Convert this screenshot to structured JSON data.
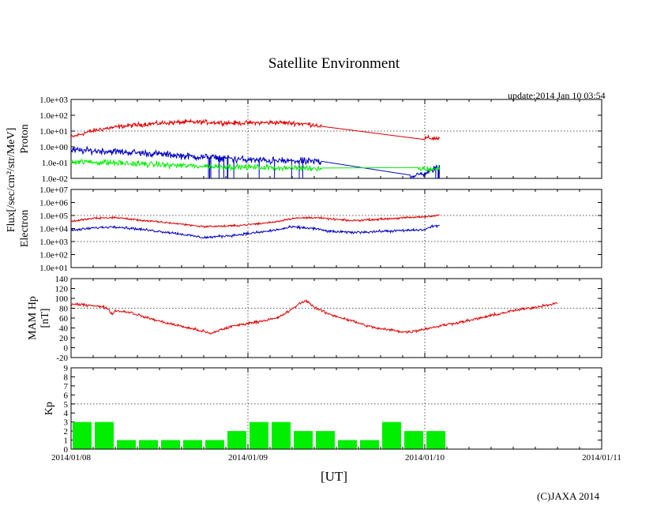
{
  "chart_data": {
    "type": "line",
    "title": "Satellite Environment",
    "update": "update:2014 Jan 10 03:54",
    "xlabel": "[UT]",
    "x_ticks": [
      "2014/01/08",
      "2014/01/09",
      "2014/01/10",
      "2014/01/11"
    ],
    "xlim": [
      0,
      72
    ],
    "x_units": "hours since 2014/01/08 00:00",
    "flux_label": "Flux[/sec/cm²/str/MeV]",
    "copyright": "(C)JAXA 2014",
    "colors": {
      "red": "#e00000",
      "blue": "#0000c0",
      "green": "#00ee00",
      "grid": "#555555"
    },
    "panels": [
      {
        "id": "proton",
        "ylabel": "Proton",
        "scale": "log",
        "ylim": [
          0.01,
          1000
        ],
        "y_ticks": [
          "1.0e-02",
          "1.0e-01",
          "1.0e+00",
          "1.0e+01",
          "1.0e+02",
          "1.0e+03"
        ],
        "gridlines": [
          10
        ],
        "series": [
          {
            "name": "proton-high",
            "color": "red",
            "noise": 0.12,
            "data": [
              [
                0,
                4
              ],
              [
                2,
                8
              ],
              [
                4,
                13
              ],
              [
                7,
                20
              ],
              [
                10,
                27
              ],
              [
                13,
                33
              ],
              [
                16,
                37
              ],
              [
                19,
                36
              ],
              [
                22,
                32
              ],
              [
                25,
                33
              ],
              [
                28,
                35
              ],
              [
                31,
                30
              ],
              [
                33,
                25
              ],
              [
                34,
                20
              ],
              [
                48,
                3.5
              ],
              [
                50,
                3.5
              ]
            ],
            "gapAfter": [
              34
            ]
          },
          {
            "name": "proton-mid",
            "color": "blue",
            "noise": 0.18,
            "data": [
              [
                0,
                0.6
              ],
              [
                4,
                0.55
              ],
              [
                8,
                0.45
              ],
              [
                12,
                0.35
              ],
              [
                16,
                0.25
              ],
              [
                20,
                0.2
              ],
              [
                24,
                0.15
              ],
              [
                28,
                0.13
              ],
              [
                32,
                0.12
              ],
              [
                34,
                0.12
              ],
              [
                46,
                0.015
              ],
              [
                47,
                0.015
              ],
              [
                50,
                0.05
              ]
            ],
            "gapAfter": [
              34
            ],
            "drops": true
          },
          {
            "name": "proton-low",
            "color": "green",
            "noise": 0.15,
            "data": [
              [
                0,
                0.12
              ],
              [
                5,
                0.1
              ],
              [
                10,
                0.08
              ],
              [
                15,
                0.065
              ],
              [
                20,
                0.055
              ],
              [
                25,
                0.05
              ],
              [
                30,
                0.045
              ],
              [
                34,
                0.045
              ],
              [
                47,
                0.04
              ],
              [
                50,
                0.04
              ]
            ],
            "gapAfter": [
              34
            ]
          }
        ]
      },
      {
        "id": "electron",
        "ylabel": "Electron",
        "scale": "log",
        "ylim": [
          10,
          10000000
        ],
        "y_ticks": [
          "1.0e+01",
          "1.0e+02",
          "1.0e+03",
          "1.0e+04",
          "1.0e+05",
          "1.0e+06",
          "1.0e+07"
        ],
        "gridlines": [
          1000,
          100000
        ],
        "series": [
          {
            "name": "electron-high",
            "color": "red",
            "noise": 0.06,
            "data": [
              [
                0,
                35000
              ],
              [
                3,
                60000
              ],
              [
                6,
                70000
              ],
              [
                10,
                40000
              ],
              [
                14,
                25000
              ],
              [
                18,
                14000
              ],
              [
                22,
                16000
              ],
              [
                26,
                25000
              ],
              [
                28,
                35000
              ],
              [
                30,
                60000
              ],
              [
                33,
                70000
              ],
              [
                35,
                55000
              ],
              [
                38,
                40000
              ],
              [
                48,
                80000
              ],
              [
                50,
                110000
              ]
            ]
          },
          {
            "name": "electron-mid",
            "color": "blue",
            "noise": 0.08,
            "data": [
              [
                0,
                7000
              ],
              [
                3,
                11000
              ],
              [
                6,
                14000
              ],
              [
                10,
                8000
              ],
              [
                14,
                4500
              ],
              [
                18,
                2000
              ],
              [
                22,
                3000
              ],
              [
                26,
                5500
              ],
              [
                28,
                8000
              ],
              [
                30,
                13000
              ],
              [
                33,
                10000
              ],
              [
                35,
                6000
              ],
              [
                38,
                5000
              ],
              [
                48,
                8000
              ],
              [
                49,
                15000
              ],
              [
                50,
                17000
              ]
            ]
          }
        ]
      },
      {
        "id": "mam",
        "ylabel": "MAM Hp",
        "ylabel2": "[nT]",
        "scale": "linear",
        "ylim": [
          -20,
          140
        ],
        "y_ticks": [
          "-20",
          "0",
          "20",
          "40",
          "60",
          "80",
          "100",
          "120",
          "140"
        ],
        "gridlines": [
          80
        ],
        "series": [
          {
            "name": "mam-hp",
            "color": "red",
            "noise": 2.2,
            "data": [
              [
                0,
                88
              ],
              [
                3,
                86
              ],
              [
                5,
                80
              ],
              [
                5.5,
                68
              ],
              [
                6,
                75
              ],
              [
                8,
                72
              ],
              [
                10,
                62
              ],
              [
                13,
                50
              ],
              [
                16,
                40
              ],
              [
                18,
                33
              ],
              [
                19,
                28
              ],
              [
                20,
                35
              ],
              [
                22,
                44
              ],
              [
                25,
                52
              ],
              [
                28,
                60
              ],
              [
                30,
                78
              ],
              [
                31,
                90
              ],
              [
                32,
                95
              ],
              [
                33,
                82
              ],
              [
                35,
                68
              ],
              [
                38,
                55
              ],
              [
                40,
                45
              ],
              [
                42,
                38
              ],
              [
                44,
                35
              ],
              [
                45,
                32
              ],
              [
                46,
                32
              ],
              [
                48,
                38
              ],
              [
                51,
                47
              ],
              [
                54,
                55
              ],
              [
                57,
                65
              ],
              [
                60,
                75
              ],
              [
                63,
                82
              ],
              [
                65,
                88
              ],
              [
                66,
                90
              ]
            ]
          }
        ]
      },
      {
        "id": "kp",
        "ylabel": "Kp",
        "scale": "linear",
        "ylim": [
          0,
          9
        ],
        "y_ticks": [
          "0",
          "1",
          "2",
          "3",
          "4",
          "5",
          "6",
          "7",
          "8",
          "9"
        ],
        "gridlines": [
          5
        ],
        "bars": [
          3,
          3,
          1,
          1,
          1,
          1,
          1,
          2,
          3,
          3,
          2,
          2,
          1,
          1,
          3,
          2,
          2
        ]
      }
    ]
  }
}
